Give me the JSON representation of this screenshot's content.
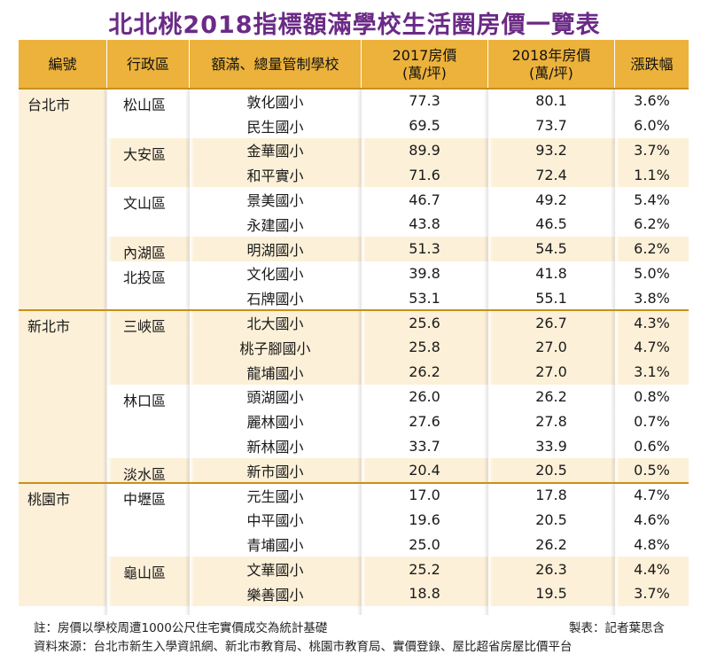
{
  "title": "北北桃2018指標額滿學校生活圈房價一覽表",
  "headers": {
    "num": "編號",
    "district": "行政區",
    "school": "額滿、總量管制學校",
    "p2017_line1": "2017房價",
    "p2017_line2": "(萬/坪)",
    "p2018_line1": "2018年房價",
    "p2018_line2": "(萬/坪)",
    "change": "漲跌幅"
  },
  "rows": [
    {
      "school": "敦化國小",
      "p2017": "77.3",
      "p2018": "80.1",
      "change": "3.6%"
    },
    {
      "school": "民生國小",
      "p2017": "69.5",
      "p2018": "73.7",
      "change": "6.0%"
    },
    {
      "school": "金華國小",
      "p2017": "89.9",
      "p2018": "93.2",
      "change": "3.7%"
    },
    {
      "school": "和平實小",
      "p2017": "71.6",
      "p2018": "72.4",
      "change": "1.1%"
    },
    {
      "school": "景美國小",
      "p2017": "46.7",
      "p2018": "49.2",
      "change": "5.4%"
    },
    {
      "school": "永建國小",
      "p2017": "43.8",
      "p2018": "46.5",
      "change": "6.2%"
    },
    {
      "school": "明湖國小",
      "p2017": "51.3",
      "p2018": "54.5",
      "change": "6.2%"
    },
    {
      "school": "文化國小",
      "p2017": "39.8",
      "p2018": "41.8",
      "change": "5.0%"
    },
    {
      "school": "石牌國小",
      "p2017": "53.1",
      "p2018": "55.1",
      "change": "3.8%"
    },
    {
      "school": "北大國小",
      "p2017": "25.6",
      "p2018": "26.7",
      "change": "4.3%"
    },
    {
      "school": "桃子腳國小",
      "p2017": "25.8",
      "p2018": "27.0",
      "change": "4.7%"
    },
    {
      "school": "龍埔國小",
      "p2017": "26.2",
      "p2018": "27.0",
      "change": "3.1%"
    },
    {
      "school": "頭湖國小",
      "p2017": "26.0",
      "p2018": "26.2",
      "change": "0.8%"
    },
    {
      "school": "麗林國小",
      "p2017": "27.6",
      "p2018": "27.8",
      "change": "0.7%"
    },
    {
      "school": "新林國小",
      "p2017": "33.7",
      "p2018": "33.9",
      "change": "0.6%"
    },
    {
      "school": "新市國小",
      "p2017": "20.4",
      "p2018": "20.5",
      "change": "0.5%"
    },
    {
      "school": "元生國小",
      "p2017": "17.0",
      "p2018": "17.8",
      "change": "4.7%"
    },
    {
      "school": "中平國小",
      "p2017": "19.6",
      "p2018": "20.5",
      "change": "4.6%"
    },
    {
      "school": "青埔國小",
      "p2017": "25.0",
      "p2018": "26.2",
      "change": "4.8%"
    },
    {
      "school": "文華國小",
      "p2017": "25.2",
      "p2018": "26.3",
      "change": "4.4%"
    },
    {
      "school": "樂善國小",
      "p2017": "18.8",
      "p2018": "19.5",
      "change": "3.7%"
    }
  ],
  "districts": [
    {
      "name": "松山區",
      "start": 0,
      "span": 2
    },
    {
      "name": "大安區",
      "start": 2,
      "span": 2
    },
    {
      "name": "文山區",
      "start": 4,
      "span": 2
    },
    {
      "name": "內湖區",
      "start": 6,
      "span": 1
    },
    {
      "name": "北投區",
      "start": 7,
      "span": 2
    },
    {
      "name": "三峽區",
      "start": 9,
      "span": 3
    },
    {
      "name": "林口區",
      "start": 12,
      "span": 3
    },
    {
      "name": "淡水區",
      "start": 15,
      "span": 1
    },
    {
      "name": "中壢區",
      "start": 16,
      "span": 3
    },
    {
      "name": "龜山區",
      "start": 19,
      "span": 2
    }
  ],
  "cities": [
    {
      "name": "台北市",
      "start": 0,
      "span": 9
    },
    {
      "name": "新北市",
      "start": 9,
      "span": 7
    },
    {
      "name": "桃園市",
      "start": 16,
      "span": 5
    }
  ],
  "footer": {
    "note": "註：房價以學校周遭1000公尺住宅實價成交為統計基礎",
    "credit": "製表：記者葉思含",
    "source": "資料來源：台北市新生入學資訊網、新北市教育局、桃園市教育局、實價登錄、屋比超省房屋比價平台"
  }
}
